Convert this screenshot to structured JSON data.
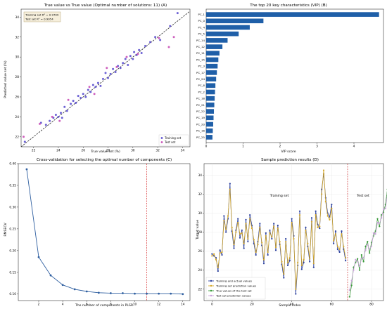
{
  "chart_data": [
    {
      "type": "scatter",
      "title": "True value vs True value (Optimal number of solutions: 11) (A)",
      "xlabel": "True value set (%)",
      "ylabel": "Predicted value set (%)",
      "xlim": [
        21,
        34.6
      ],
      "ylim": [
        21,
        34.8
      ],
      "xticks": [
        "22",
        "24",
        "26",
        "28",
        "30",
        "32",
        "34"
      ],
      "yticks": [
        "22",
        "24",
        "26",
        "28",
        "30",
        "32",
        "34"
      ],
      "grid": false,
      "legend": "bottom-right",
      "stats_box": [
        "Training set R² = 0.9709",
        "Test set R² = 0.9054"
      ],
      "diagonal": true,
      "colors": {
        "train": "#5b4fcf",
        "test": "#c94fb7",
        "diag": "#222222"
      },
      "series": [
        {
          "name": "Training set",
          "points": [
            [
              21.3,
              21.5
            ],
            [
              22.6,
              23.4
            ],
            [
              23.0,
              23.2
            ],
            [
              23.3,
              23.6
            ],
            [
              23.6,
              23.9
            ],
            [
              23.8,
              24.2
            ],
            [
              24.0,
              24.0
            ],
            [
              24.2,
              24.4
            ],
            [
              24.3,
              23.9
            ],
            [
              24.5,
              25.0
            ],
            [
              24.7,
              24.6
            ],
            [
              25.0,
              25.3
            ],
            [
              25.2,
              25.6
            ],
            [
              25.4,
              25.4
            ],
            [
              25.6,
              26.1
            ],
            [
              25.8,
              25.9
            ],
            [
              26.0,
              26.3
            ],
            [
              26.2,
              26.0
            ],
            [
              26.4,
              26.7
            ],
            [
              26.6,
              26.5
            ],
            [
              26.8,
              27.2
            ],
            [
              27.0,
              27.0
            ],
            [
              27.2,
              27.4
            ],
            [
              27.4,
              27.1
            ],
            [
              27.6,
              27.8
            ],
            [
              27.8,
              28.4
            ],
            [
              28.0,
              27.9
            ],
            [
              28.2,
              28.3
            ],
            [
              28.4,
              28.8
            ],
            [
              28.6,
              28.5
            ],
            [
              28.8,
              29.1
            ],
            [
              29.0,
              28.9
            ],
            [
              29.2,
              29.4
            ],
            [
              29.4,
              29.8
            ],
            [
              29.6,
              29.2
            ],
            [
              29.8,
              30.1
            ],
            [
              30.0,
              29.8
            ],
            [
              30.1,
              30.5
            ],
            [
              30.3,
              30.2
            ],
            [
              30.5,
              30.7
            ],
            [
              30.7,
              30.4
            ],
            [
              31.0,
              31.1
            ],
            [
              31.4,
              31.5
            ],
            [
              31.8,
              32.0
            ],
            [
              32.2,
              31.7
            ],
            [
              33.0,
              33.1
            ],
            [
              33.6,
              34.4
            ]
          ]
        },
        {
          "name": "Test set",
          "points": [
            [
              21.2,
              22.0
            ],
            [
              22.5,
              23.3
            ],
            [
              23.5,
              24.0
            ],
            [
              24.8,
              25.7
            ],
            [
              26.5,
              27.0
            ],
            [
              27.9,
              28.9
            ],
            [
              28.7,
              29.0
            ],
            [
              29.5,
              30.0
            ],
            [
              30.4,
              30.3
            ],
            [
              32.1,
              31.9
            ],
            [
              32.9,
              31.0
            ],
            [
              33.3,
              32.0
            ],
            [
              24.1,
              23.6
            ],
            [
              26.9,
              26.3
            ]
          ]
        }
      ]
    },
    {
      "type": "bar",
      "title": "The top 20 key characteristics (VIP) (B)",
      "xlabel": "VIP score",
      "orientation": "horizontal",
      "xlim": [
        0,
        4.8
      ],
      "xticks": [
        "0",
        "1",
        "2",
        "3",
        "4"
      ],
      "grid": false,
      "color": "#1f5fa8",
      "categories": [
        "PC_1",
        "PC_0",
        "PC_4",
        "PC_5",
        "PC_14",
        "PC_12",
        "PC_11",
        "PC_15",
        "PC_3",
        "PC_17",
        "PC_24",
        "PC_8",
        "PC_2",
        "PC_18",
        "PC_21",
        "PC_22",
        "PC_19",
        "PC_20",
        "PC_16",
        "PC_25"
      ],
      "values": [
        4.68,
        1.55,
        1.18,
        0.88,
        0.58,
        0.44,
        0.36,
        0.33,
        0.31,
        0.29,
        0.27,
        0.25,
        0.24,
        0.23,
        0.22,
        0.21,
        0.2,
        0.19,
        0.18,
        0.17
      ]
    },
    {
      "type": "line",
      "title": "Cross-validation for selecting the optimal number of components (C)",
      "xlabel": "The number of components in PLSR",
      "ylabel": "RMSECV",
      "xlim": [
        0.3,
        14.6
      ],
      "ylim": [
        0.085,
        0.4
      ],
      "xticks": [
        "2",
        "4",
        "6",
        "8",
        "10",
        "12",
        "14"
      ],
      "yticks": [
        "0.10",
        "0.15",
        "0.20",
        "0.25",
        "0.30",
        "0.35",
        "0.40"
      ],
      "grid": false,
      "optimal_line_x": 11,
      "colors": {
        "line": "#2f5fa0",
        "optimal": "#d62728"
      },
      "x": [
        1,
        2,
        3,
        4,
        5,
        6,
        7,
        8,
        9,
        10,
        11,
        12,
        13,
        14
      ],
      "values": [
        0.387,
        0.185,
        0.143,
        0.121,
        0.111,
        0.106,
        0.103,
        0.102,
        0.102,
        0.101,
        0.101,
        0.101,
        0.101,
        0.1
      ]
    },
    {
      "type": "line",
      "title": "Sample prediction results (D)",
      "xlabel": "Sample index",
      "ylabel": "Target value",
      "xlim": [
        -4,
        86
      ],
      "ylim": [
        20.8,
        35.2
      ],
      "xticks": [
        "0",
        "20",
        "40",
        "60",
        "80"
      ],
      "yticks": [
        "22",
        "24",
        "26",
        "28",
        "30",
        "32",
        "34"
      ],
      "grid": true,
      "legend": "bottom-left",
      "split_x": 68,
      "annotations": [
        "Training set",
        "Test set"
      ],
      "colors": {
        "train_actual": "#2a3f9d",
        "train_pred": "#d4a82a",
        "test_actual": "#3a9a3a",
        "test_pred": "#c9a0d8",
        "split": "#cc3333"
      },
      "series": [
        {
          "name": "Training and actual values",
          "x_start": 0,
          "values": [
            25.7,
            25.5,
            25.3,
            23.9,
            26.1,
            25.6,
            29.7,
            28.0,
            29.4,
            33.1,
            28.1,
            26.3,
            28.2,
            29.4,
            27.4,
            28.2,
            26.3,
            29.3,
            27.0,
            29.8,
            28.7,
            26.8,
            25.6,
            27.0,
            28.9,
            26.6,
            24.7,
            27.9,
            25.6,
            28.2,
            27.3,
            28.9,
            26.1,
            28.7,
            26.7,
            24.6,
            23.2,
            27.3,
            24.5,
            25.0,
            29.4,
            27.6,
            21.5,
            24.5,
            30.2,
            24.1,
            24.8,
            28.5,
            26.5,
            24.9,
            29.5,
            24.3,
            30.2,
            28.8,
            28.4,
            32.5,
            34.1,
            31.6,
            30.0,
            29.6,
            30.9,
            26.8,
            28.1,
            26.2,
            25.9,
            28.1,
            26.2,
            25.0
          ]
        },
        {
          "name": "Training set prediction values",
          "x_start": 0,
          "values": [
            25.5,
            25.7,
            25.1,
            24.3,
            25.8,
            25.9,
            29.2,
            28.3,
            29.7,
            32.5,
            28.5,
            26.7,
            28.0,
            29.0,
            27.8,
            27.9,
            26.8,
            28.9,
            27.3,
            29.4,
            28.4,
            27.2,
            25.9,
            26.7,
            28.5,
            26.9,
            25.1,
            27.6,
            25.9,
            27.9,
            27.5,
            28.6,
            26.4,
            28.4,
            27.0,
            24.9,
            23.6,
            27.0,
            24.8,
            25.3,
            29.0,
            27.3,
            22.0,
            24.8,
            29.8,
            24.5,
            25.1,
            28.2,
            26.8,
            25.2,
            29.1,
            24.7,
            29.8,
            28.5,
            28.6,
            32.0,
            34.5,
            31.2,
            29.7,
            29.3,
            30.5,
            27.1,
            27.8,
            26.5,
            26.2,
            27.8,
            26.5,
            25.3
          ]
        },
        {
          "name": "True values of the test set",
          "x_start": 69,
          "values": [
            21.2,
            22.4,
            24.3,
            24.8,
            25.2,
            24.0,
            25.6,
            24.9,
            26.5,
            27.0,
            25.8,
            26.9,
            27.6,
            28.1,
            29.4,
            28.6,
            29.8,
            30.1,
            30.9,
            32.5,
            33.1,
            31.2
          ]
        },
        {
          "name": "Test set prediction values",
          "x_start": 69,
          "values": [
            21.9,
            22.9,
            24.0,
            25.1,
            24.9,
            24.4,
            25.2,
            25.3,
            26.1,
            26.7,
            26.2,
            26.5,
            27.9,
            27.8,
            29.0,
            28.9,
            29.5,
            30.4,
            30.5,
            32.0,
            32.6,
            31.5
          ]
        }
      ]
    }
  ]
}
